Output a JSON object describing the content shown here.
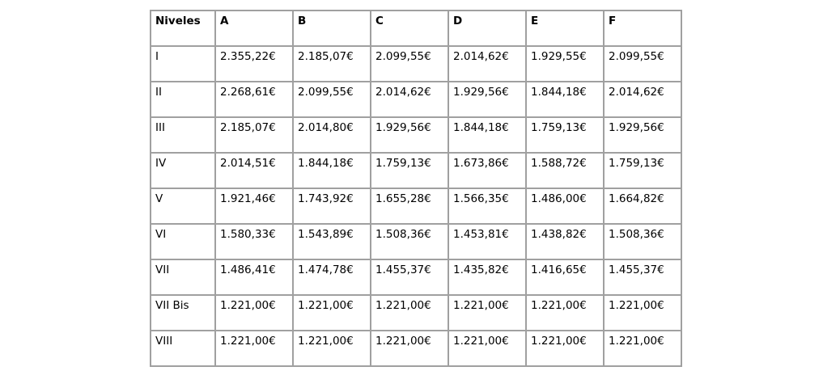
{
  "colors": {
    "border": "#a0a0a0",
    "text": "#000000",
    "background": "#ffffff"
  },
  "table": {
    "headers": [
      "Niveles",
      "A",
      "B",
      "C",
      "D",
      "E",
      "F"
    ],
    "rows": [
      {
        "level": "I",
        "values": [
          "2.355,22€",
          "2.185,07€",
          "2.099,55€",
          "2.014,62€",
          "1.929,55€",
          "2.099,55€"
        ]
      },
      {
        "level": "II",
        "values": [
          "2.268,61€",
          "2.099,55€",
          "2.014,62€",
          "1.929,56€",
          "1.844,18€",
          "2.014,62€"
        ]
      },
      {
        "level": "III",
        "values": [
          "2.185,07€",
          "2.014,80€",
          "1.929,56€",
          "1.844,18€",
          "1.759,13€",
          "1.929,56€"
        ]
      },
      {
        "level": "IV",
        "values": [
          "2.014,51€",
          "1.844,18€",
          "1.759,13€",
          "1.673,86€",
          "1.588,72€",
          "1.759,13€"
        ]
      },
      {
        "level": "V",
        "values": [
          "1.921,46€",
          "1.743,92€",
          "1.655,28€",
          "1.566,35€",
          "1.486,00€",
          "1.664,82€"
        ]
      },
      {
        "level": "VI",
        "values": [
          "1.580,33€",
          "1.543,89€",
          "1.508,36€",
          "1.453,81€",
          "1.438,82€",
          "1.508,36€"
        ]
      },
      {
        "level": "VII",
        "values": [
          "1.486,41€",
          "1.474,78€",
          "1.455,37€",
          "1.435,82€",
          "1.416,65€",
          "1.455,37€"
        ]
      },
      {
        "level": "VII Bis",
        "values": [
          "1.221,00€",
          "1.221,00€",
          "1.221,00€",
          "1.221,00€",
          "1.221,00€",
          "1.221,00€"
        ]
      },
      {
        "level": "VIII",
        "values": [
          "1.221,00€",
          "1.221,00€",
          "1.221,00€",
          "1.221,00€",
          "1.221,00€",
          "1.221,00€"
        ]
      }
    ]
  }
}
